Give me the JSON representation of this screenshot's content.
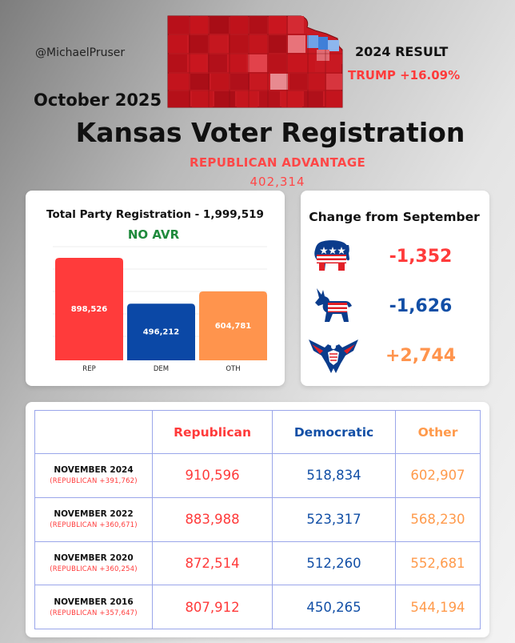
{
  "header": {
    "handle": "@MichaelPruser",
    "month": "October 2025",
    "result_label": "2024 RESULT",
    "result_value": "TRUMP +16.09%",
    "title": "Kansas Voter Registration",
    "advantage_label": "REPUBLICAN ADVANTAGE",
    "advantage_value": "402,314"
  },
  "total_card": {
    "title": "Total Party Registration - 1,999,519",
    "subtitle": "NO AVR"
  },
  "chart_data": {
    "type": "bar",
    "categories": [
      "REP",
      "DEM",
      "OTH"
    ],
    "values": [
      898526,
      496212,
      604781
    ],
    "value_labels": [
      "898,526",
      "496,212",
      "604,781"
    ],
    "colors": [
      "#ff3b3b",
      "#0b48a6",
      "#ff944d"
    ],
    "ylim": [
      0,
      898526
    ],
    "title": "Total Party Registration - 1,999,519"
  },
  "change_card": {
    "title": "Change from September",
    "rows": [
      {
        "icon": "republican-elephant-icon",
        "value": "-1,352",
        "color": "#ff3b3b"
      },
      {
        "icon": "democratic-donkey-icon",
        "value": "-1,626",
        "color": "#124fa6"
      },
      {
        "icon": "independent-eagle-icon",
        "value": "+2,744",
        "color": "#ff944d"
      }
    ]
  },
  "table": {
    "headers": [
      "Republican",
      "Democratic",
      "Other"
    ],
    "rows": [
      {
        "date": "NOVEMBER 2024",
        "margin": "(REPUBLICAN +391,762)",
        "rep": "910,596",
        "dem": "518,834",
        "oth": "602,907"
      },
      {
        "date": "NOVEMBER 2022",
        "margin": "(REPUBLICAN +360,671)",
        "rep": "883,988",
        "dem": "523,317",
        "oth": "568,230"
      },
      {
        "date": "NOVEMBER 2020",
        "margin": "(REPUBLICAN +360,254)",
        "rep": "872,514",
        "dem": "512,260",
        "oth": "552,681"
      },
      {
        "date": "NOVEMBER 2016",
        "margin": "(REPUBLICAN +357,647)",
        "rep": "807,912",
        "dem": "450,265",
        "oth": "544,194"
      }
    ]
  },
  "colors": {
    "rep": "#ff3b3b",
    "dem": "#124fa6",
    "oth": "#ff944d",
    "avr": "#1f8a3c"
  }
}
